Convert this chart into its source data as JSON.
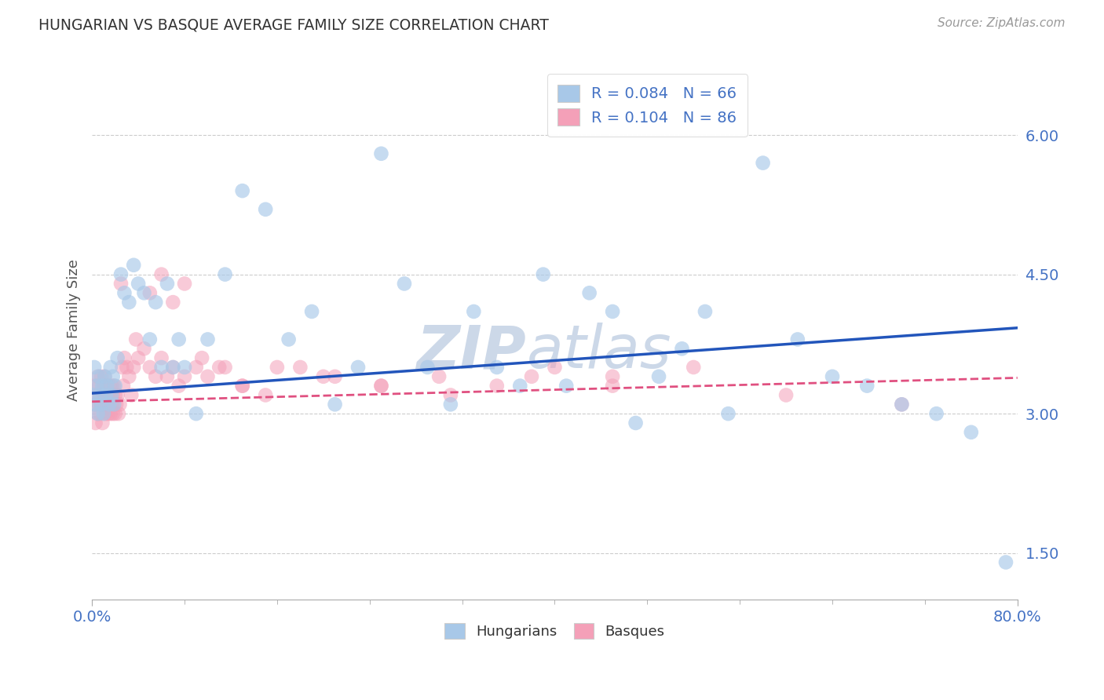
{
  "title": "HUNGARIAN VS BASQUE AVERAGE FAMILY SIZE CORRELATION CHART",
  "source_text": "Source: ZipAtlas.com",
  "ylabel": "Average Family Size",
  "xlim": [
    0.0,
    0.8
  ],
  "ylim": [
    1.0,
    6.8
  ],
  "yticks": [
    1.5,
    3.0,
    4.5,
    6.0
  ],
  "xticks": [
    0.0,
    0.8
  ],
  "xticklabels": [
    "0.0%",
    "80.0%"
  ],
  "legend_bottom": [
    "Hungarians",
    "Basques"
  ],
  "hungarian_color": "#a8c8e8",
  "basque_color": "#f4a0b8",
  "hungarian_line_color": "#2255bb",
  "basque_line_color": "#e05080",
  "background_color": "#ffffff",
  "grid_color": "#cccccc",
  "title_color": "#333333",
  "axis_label_color": "#555555",
  "tick_color": "#4472c4",
  "watermark_color": "#ccd8e8",
  "hungarian_R": 0.084,
  "hungarian_N": 66,
  "basque_R": 0.104,
  "basque_N": 86,
  "hungarian_scatter_x": [
    0.001,
    0.002,
    0.003,
    0.004,
    0.005,
    0.006,
    0.007,
    0.008,
    0.009,
    0.01,
    0.011,
    0.012,
    0.013,
    0.015,
    0.016,
    0.017,
    0.018,
    0.019,
    0.02,
    0.022,
    0.025,
    0.028,
    0.032,
    0.036,
    0.04,
    0.045,
    0.05,
    0.055,
    0.06,
    0.065,
    0.07,
    0.075,
    0.08,
    0.09,
    0.1,
    0.115,
    0.13,
    0.15,
    0.17,
    0.19,
    0.21,
    0.23,
    0.25,
    0.27,
    0.29,
    0.31,
    0.33,
    0.35,
    0.37,
    0.39,
    0.41,
    0.43,
    0.45,
    0.47,
    0.49,
    0.51,
    0.53,
    0.55,
    0.58,
    0.61,
    0.64,
    0.67,
    0.7,
    0.73,
    0.76,
    0.79
  ],
  "hungarian_scatter_y": [
    3.2,
    3.5,
    3.1,
    3.3,
    3.0,
    3.4,
    3.2,
    3.1,
    3.3,
    3.0,
    3.4,
    3.2,
    3.3,
    3.1,
    3.5,
    3.2,
    3.4,
    3.1,
    3.3,
    3.6,
    4.5,
    4.3,
    4.2,
    4.6,
    4.4,
    4.3,
    3.8,
    4.2,
    3.5,
    4.4,
    3.5,
    3.8,
    3.5,
    3.0,
    3.8,
    4.5,
    5.4,
    5.2,
    3.8,
    4.1,
    3.1,
    3.5,
    5.8,
    4.4,
    3.5,
    3.1,
    4.1,
    3.5,
    3.3,
    4.5,
    3.3,
    4.3,
    4.1,
    2.9,
    3.4,
    3.7,
    4.1,
    3.0,
    5.7,
    3.8,
    3.4,
    3.3,
    3.1,
    3.0,
    2.8,
    1.4
  ],
  "basque_scatter_x": [
    0.001,
    0.002,
    0.003,
    0.004,
    0.005,
    0.005,
    0.006,
    0.006,
    0.007,
    0.007,
    0.008,
    0.008,
    0.009,
    0.009,
    0.01,
    0.01,
    0.011,
    0.011,
    0.012,
    0.012,
    0.013,
    0.013,
    0.014,
    0.014,
    0.015,
    0.015,
    0.016,
    0.016,
    0.017,
    0.017,
    0.018,
    0.018,
    0.019,
    0.019,
    0.02,
    0.02,
    0.021,
    0.022,
    0.023,
    0.024,
    0.025,
    0.026,
    0.027,
    0.028,
    0.03,
    0.032,
    0.034,
    0.036,
    0.038,
    0.04,
    0.045,
    0.05,
    0.055,
    0.06,
    0.065,
    0.07,
    0.075,
    0.08,
    0.09,
    0.1,
    0.115,
    0.13,
    0.15,
    0.18,
    0.21,
    0.25,
    0.3,
    0.35,
    0.4,
    0.45,
    0.05,
    0.06,
    0.07,
    0.08,
    0.095,
    0.11,
    0.13,
    0.16,
    0.2,
    0.25,
    0.31,
    0.38,
    0.45,
    0.52,
    0.6,
    0.7
  ],
  "basque_scatter_y": [
    3.3,
    3.1,
    2.9,
    3.2,
    3.0,
    3.4,
    3.1,
    3.3,
    3.2,
    3.0,
    3.1,
    3.4,
    3.2,
    2.9,
    3.3,
    3.1,
    3.2,
    3.4,
    3.0,
    3.2,
    3.1,
    3.3,
    3.0,
    3.2,
    3.1,
    3.3,
    3.2,
    3.0,
    3.1,
    3.3,
    3.2,
    3.0,
    3.1,
    3.3,
    3.2,
    3.0,
    3.1,
    3.2,
    3.0,
    3.1,
    4.4,
    3.5,
    3.3,
    3.6,
    3.5,
    3.4,
    3.2,
    3.5,
    3.8,
    3.6,
    3.7,
    3.5,
    3.4,
    3.6,
    3.4,
    3.5,
    3.3,
    3.4,
    3.5,
    3.4,
    3.5,
    3.3,
    3.2,
    3.5,
    3.4,
    3.3,
    3.4,
    3.3,
    3.5,
    3.4,
    4.3,
    4.5,
    4.2,
    4.4,
    3.6,
    3.5,
    3.3,
    3.5,
    3.4,
    3.3,
    3.2,
    3.4,
    3.3,
    3.5,
    3.2,
    3.1
  ]
}
